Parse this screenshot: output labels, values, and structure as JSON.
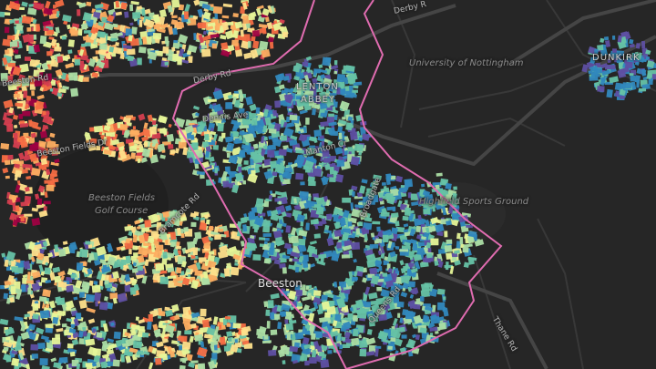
{
  "map": {
    "labels": {
      "university": "University of Nottingham",
      "lenton_line1": "LENTON",
      "lenton_line2": "ABBEY",
      "highfields": "Highfield Sports Ground",
      "beeston_fields_line1": "Beeston Fields",
      "beeston_fields_line2": "Golf Course",
      "beeston": "Beeston",
      "derby_rd_top": "Derby R",
      "derby_rd_left": "Derby Rd",
      "beeston_rd": "Beeston Rd",
      "dennis_ave": "Dennis Ave",
      "beeston_fields_dr": "Beeston Fields Dr",
      "manton_cres": "Manton Cr",
      "broadgate": "Broadgate",
      "bramcote_rd": "Bramcote Rd",
      "queens_rd": "Queens Rd",
      "thane_rd": "Thane Rd",
      "dunkirk": "DUNKIRK"
    },
    "colors": {
      "background": "#262626",
      "road": "#383838",
      "major_road": "#454545",
      "boundary": "#e06cb0",
      "palette": [
        "#9e0142",
        "#d53e4f",
        "#f46d43",
        "#fdae61",
        "#fee08b",
        "#e6f598",
        "#abdda4",
        "#66c2a5",
        "#3288bd",
        "#5e4fa2"
      ]
    }
  }
}
